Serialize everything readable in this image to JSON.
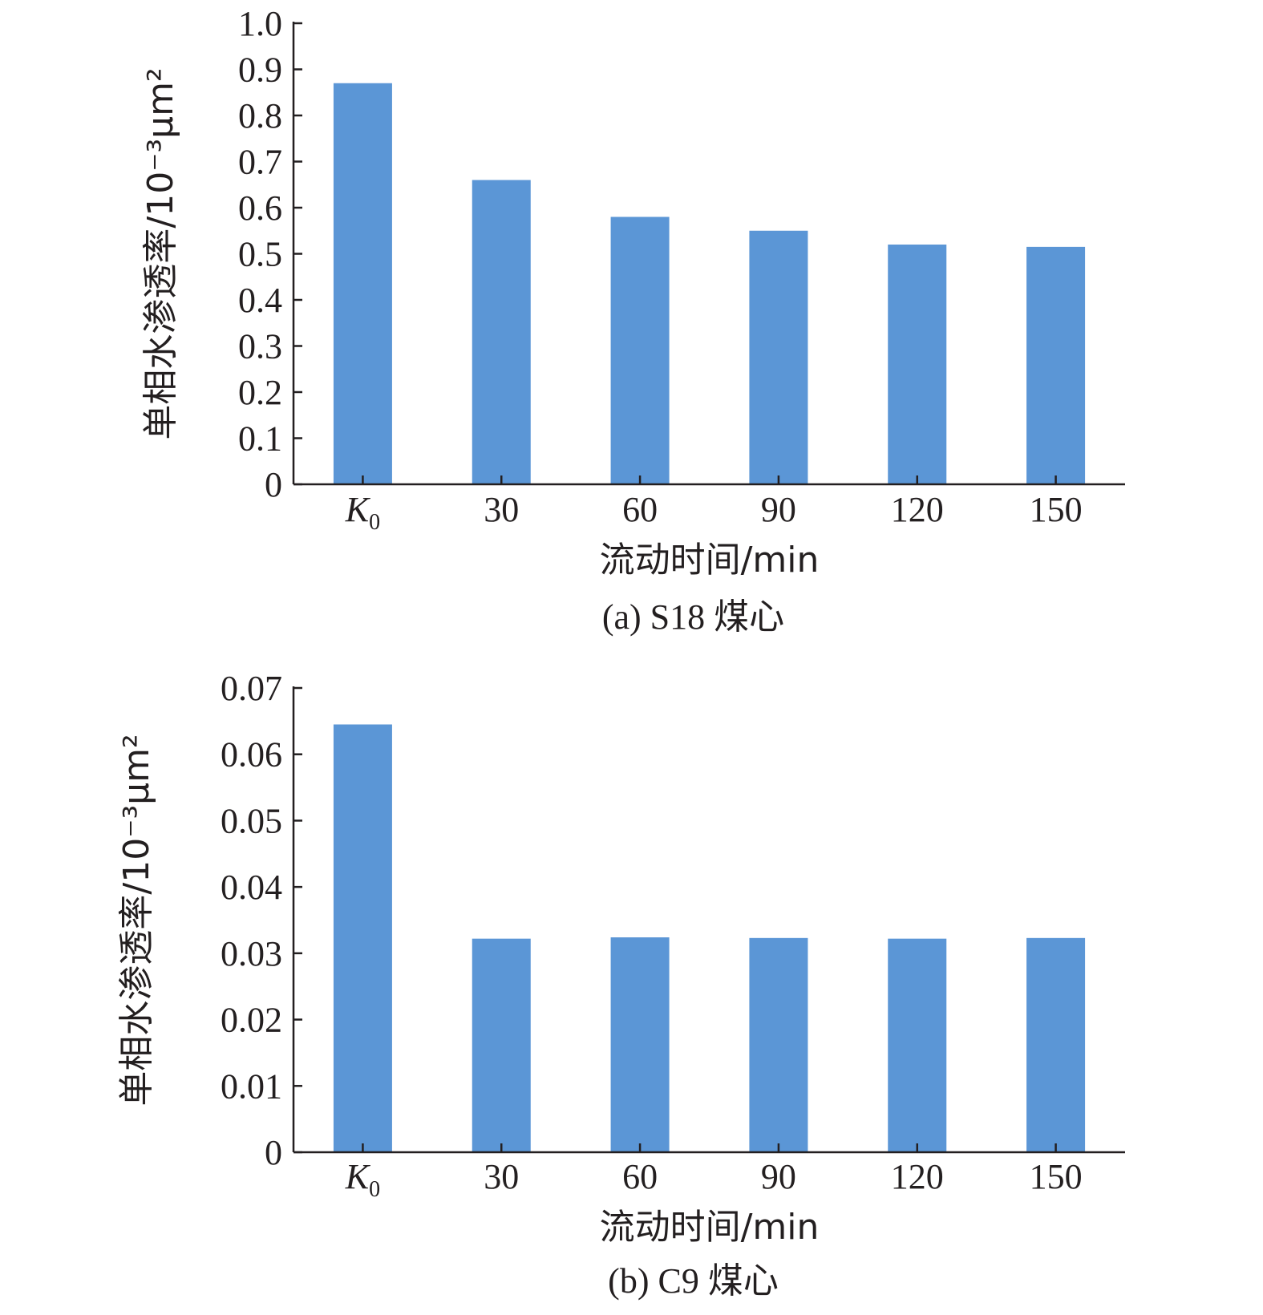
{
  "chart_data": [
    {
      "type": "bar",
      "caption": "(a) S18 煤心",
      "xlabel": "流动时间/min",
      "ylabel": "单相水渗透率/10⁻³μm²",
      "categories": [
        "K0",
        "30",
        "60",
        "90",
        "120",
        "150"
      ],
      "values": [
        0.87,
        0.66,
        0.58,
        0.55,
        0.52,
        0.515
      ],
      "ylim": [
        0,
        1.0
      ],
      "yticks": [
        "0",
        "0.1",
        "0.2",
        "0.3",
        "0.4",
        "0.5",
        "0.6",
        "0.7",
        "0.8",
        "0.9",
        "1.0"
      ],
      "bar_color": "#5b96d6",
      "grid": false
    },
    {
      "type": "bar",
      "caption": "(b) C9 煤心",
      "xlabel": "流动时间/min",
      "ylabel": "单相水渗透率/10⁻³μm²",
      "categories": [
        "K0",
        "30",
        "60",
        "90",
        "120",
        "150"
      ],
      "values": [
        0.0645,
        0.0322,
        0.0324,
        0.0323,
        0.0322,
        0.0323
      ],
      "ylim": [
        0,
        0.07
      ],
      "yticks": [
        "0",
        "0.01",
        "0.02",
        "0.03",
        "0.04",
        "0.05",
        "0.06",
        "0.07"
      ],
      "bar_color": "#5b96d6",
      "grid": false
    }
  ]
}
